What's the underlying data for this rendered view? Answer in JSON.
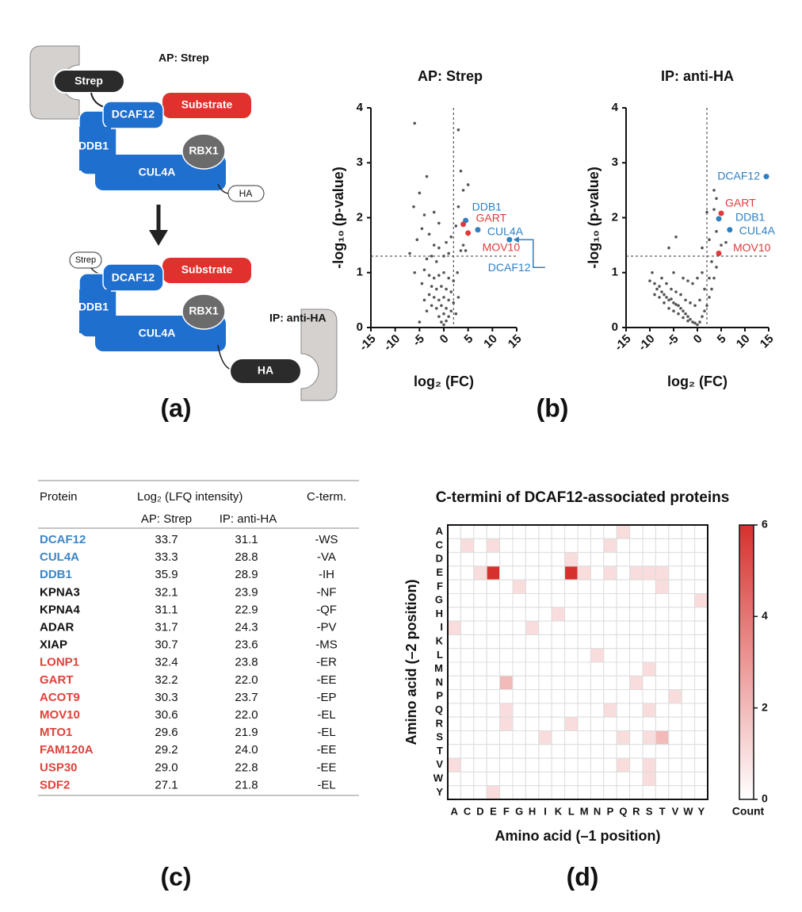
{
  "panel_labels": [
    "(a)",
    "(b)",
    "(c)",
    "(d)"
  ],
  "diagram": {
    "labels": [
      "AP: Strep",
      "Strep",
      "DCAF12",
      "Substrate",
      "DDB1",
      "RBX1",
      "CUL4A",
      "HA",
      "Strep",
      "DCAF12",
      "Substrate",
      "DDB1",
      "RBX1",
      "CUL4A",
      "HA",
      "IP: anti-HA"
    ]
  },
  "table": {
    "headers": [
      "Protein",
      "Log₂ (LFQ intensity)",
      "C-term."
    ],
    "subheaders": [
      "AP: Strep",
      "IP: anti-HA"
    ],
    "rows": [
      [
        "DCAF12",
        "33.7",
        "31.1",
        "-WS"
      ],
      [
        "CUL4A",
        "33.3",
        "28.8",
        "-VA"
      ],
      [
        "DDB1",
        "35.9",
        "28.9",
        "-IH"
      ],
      [
        "KPNA3",
        "32.1",
        "23.9",
        "-NF"
      ],
      [
        "KPNA4",
        "31.1",
        "22.9",
        "-QF"
      ],
      [
        "ADAR",
        "31.7",
        "24.3",
        "-PV"
      ],
      [
        "XIAP",
        "30.7",
        "23.6",
        "-MS"
      ],
      [
        "LONP1",
        "32.4",
        "23.8",
        "-ER"
      ],
      [
        "GART",
        "32.2",
        "22.0",
        "-EE"
      ],
      [
        "ACOT9",
        "30.3",
        "23.7",
        "-EP"
      ],
      [
        "MOV10",
        "30.6",
        "22.0",
        "-EL"
      ],
      [
        "MTO1",
        "29.6",
        "21.9",
        "-EL"
      ],
      [
        "FAM120A",
        "29.2",
        "24.0",
        "-EE"
      ],
      [
        "USP30",
        "29.0",
        "22.8",
        "-EE"
      ],
      [
        "SDF2",
        "27.1",
        "21.8",
        "-EL"
      ]
    ],
    "row_colors": [
      "#3d85c6",
      "#3d85c6",
      "#3d85c6",
      "#111111",
      "#111111",
      "#111111",
      "#111111",
      "#e0413a",
      "#e0413a",
      "#e0413a",
      "#e0413a",
      "#e0413a",
      "#e0413a",
      "#e0413a",
      "#e0413a"
    ]
  },
  "chart_data": [
    {
      "type": "scatter",
      "title": "AP: Strep",
      "xlabel": "log₂ (FC)",
      "ylabel": "-log₁₀ (p-value)",
      "xlim": [
        -15,
        15
      ],
      "ylim": [
        0,
        4
      ],
      "xticks": [
        -15,
        -10,
        -5,
        0,
        5,
        10,
        15
      ],
      "yticks": [
        0,
        1,
        2,
        3,
        4
      ],
      "vlines": [
        2
      ],
      "hlines": [
        1.3
      ],
      "color": "#555555",
      "points": [
        [
          -6,
          3.72
        ],
        [
          3,
          3.6
        ],
        [
          -3.5,
          2.75
        ],
        [
          -5,
          2.45
        ],
        [
          -6.2,
          2.2
        ],
        [
          -4,
          2.05
        ],
        [
          -4.5,
          1.8
        ],
        [
          -7,
          1.35
        ],
        [
          -5.5,
          1.6
        ],
        [
          -3,
          1.7
        ],
        [
          -2,
          1.5
        ],
        [
          -1,
          1.45
        ],
        [
          -2.5,
          1.3
        ],
        [
          -3.5,
          1.25
        ],
        [
          -1.5,
          1.2
        ],
        [
          0,
          1.3
        ],
        [
          1,
          1.35
        ],
        [
          3.5,
          2.85
        ],
        [
          4,
          2.5
        ],
        [
          3,
          2.2
        ],
        [
          2.5,
          1.85
        ],
        [
          5,
          2.6
        ],
        [
          3.5,
          1.4
        ],
        [
          -4,
          1.05
        ],
        [
          -3,
          0.95
        ],
        [
          -2,
          0.9
        ],
        [
          -1,
          0.95
        ],
        [
          0,
          1.0
        ],
        [
          1,
          0.9
        ],
        [
          2,
          0.85
        ],
        [
          -2.5,
          0.75
        ],
        [
          -1.5,
          0.7
        ],
        [
          -0.5,
          0.75
        ],
        [
          0.5,
          0.7
        ],
        [
          1.5,
          0.65
        ],
        [
          -3,
          0.6
        ],
        [
          -2,
          0.55
        ],
        [
          -1,
          0.5
        ],
        [
          0,
          0.55
        ],
        [
          1,
          0.5
        ],
        [
          2,
          0.45
        ],
        [
          -2.5,
          0.4
        ],
        [
          -1.5,
          0.35
        ],
        [
          -0.5,
          0.4
        ],
        [
          0.5,
          0.35
        ],
        [
          1.5,
          0.3
        ],
        [
          -1,
          0.2
        ],
        [
          0,
          0.25
        ],
        [
          1,
          0.2
        ],
        [
          -0.5,
          0.1
        ],
        [
          0.5,
          0.12
        ],
        [
          0,
          0.05
        ],
        [
          -3.5,
          0.3
        ],
        [
          2.5,
          0.25
        ],
        [
          -4,
          0.5
        ],
        [
          3,
          0.55
        ],
        [
          -4.5,
          0.8
        ],
        [
          2.8,
          1.0
        ],
        [
          -5,
          0.1
        ],
        [
          4,
          1.5
        ],
        [
          -1,
          1.9
        ],
        [
          1.5,
          1.65
        ],
        [
          -2,
          2.1
        ],
        [
          0.5,
          1.55
        ],
        [
          4.5,
          1.4
        ],
        [
          -6,
          1.0
        ]
      ],
      "highlights": [
        {
          "name": "DDB1",
          "x": 4.5,
          "y": 1.95,
          "color": "#2f7fc1"
        },
        {
          "name": "GART",
          "x": 4,
          "y": 1.88,
          "color": "#e03a3a"
        },
        {
          "name": "CUL4A",
          "x": 7,
          "y": 1.78,
          "color": "#2f7fc1"
        },
        {
          "name": "MOV10",
          "x": 5,
          "y": 1.72,
          "color": "#e03a3a"
        },
        {
          "name": "DCAF12",
          "x": 13.5,
          "y": 1.6,
          "color": "#2f7fc1"
        }
      ]
    },
    {
      "type": "scatter",
      "title": "IP: anti-HA",
      "xlabel": "log₂ (FC)",
      "ylabel": "-log₁₀ (p-value)",
      "xlim": [
        -15,
        15
      ],
      "ylim": [
        0,
        4
      ],
      "xticks": [
        -15,
        -10,
        -5,
        0,
        5,
        10,
        15
      ],
      "yticks": [
        0,
        1,
        2,
        3,
        4
      ],
      "vlines": [
        2
      ],
      "hlines": [
        1.3
      ],
      "color": "#555555",
      "points": [
        [
          3.5,
          2.5
        ],
        [
          4,
          2.35
        ],
        [
          3.5,
          2.15
        ],
        [
          2,
          2.1
        ],
        [
          4,
          1.75
        ],
        [
          -4.5,
          1.65
        ],
        [
          -6,
          1.45
        ],
        [
          1,
          1.45
        ],
        [
          -9.5,
          1.0
        ],
        [
          -10,
          0.85
        ],
        [
          -9,
          0.8
        ],
        [
          -8.5,
          0.7
        ],
        [
          -8,
          0.75
        ],
        [
          -7.5,
          0.65
        ],
        [
          -7,
          0.6
        ],
        [
          -6.5,
          0.55
        ],
        [
          -6,
          0.5
        ],
        [
          -5.5,
          0.52
        ],
        [
          -5,
          0.45
        ],
        [
          -4.5,
          0.42
        ],
        [
          -4,
          0.4
        ],
        [
          -3.5,
          0.35
        ],
        [
          -3,
          0.3
        ],
        [
          -2.5,
          0.25
        ],
        [
          -2,
          0.2
        ],
        [
          -1.5,
          0.15
        ],
        [
          -1,
          0.1
        ],
        [
          -0.5,
          0.08
        ],
        [
          0,
          0.05
        ],
        [
          0.5,
          0.1
        ],
        [
          1,
          0.2
        ],
        [
          1.5,
          0.3
        ],
        [
          2,
          0.4
        ],
        [
          2.5,
          0.55
        ],
        [
          3,
          0.7
        ],
        [
          3.5,
          0.9
        ],
        [
          4,
          1.1
        ],
        [
          -8,
          0.55
        ],
        [
          -7,
          0.45
        ],
        [
          -6,
          0.35
        ],
        [
          -5,
          0.3
        ],
        [
          -4,
          0.25
        ],
        [
          -3,
          0.18
        ],
        [
          -2,
          0.12
        ],
        [
          -9,
          0.6
        ],
        [
          -7.5,
          0.9
        ],
        [
          -6.5,
          0.8
        ],
        [
          -5.5,
          0.7
        ],
        [
          -4.5,
          0.65
        ],
        [
          -3.5,
          0.6
        ],
        [
          -2.5,
          0.5
        ],
        [
          -1.5,
          0.45
        ],
        [
          -0.5,
          0.4
        ],
        [
          0.5,
          0.5
        ],
        [
          1.5,
          0.7
        ],
        [
          2.5,
          0.9
        ],
        [
          3,
          1.2
        ],
        [
          -3,
          0.9
        ],
        [
          -2,
          0.85
        ],
        [
          -1,
          0.8
        ],
        [
          0,
          0.9
        ],
        [
          1,
          1.0
        ],
        [
          -5,
          1.0
        ],
        [
          2.5,
          1.6
        ],
        [
          5,
          1.5
        ],
        [
          6,
          1.55
        ]
      ],
      "highlights": [
        {
          "name": "DCAF12",
          "x": 14.5,
          "y": 2.75,
          "color": "#2f7fc1"
        },
        {
          "name": "GART",
          "x": 5,
          "y": 2.08,
          "color": "#e03a3a"
        },
        {
          "name": "DDB1",
          "x": 4.5,
          "y": 1.98,
          "color": "#2f7fc1"
        },
        {
          "name": "CUL4A",
          "x": 6.8,
          "y": 1.78,
          "color": "#2f7fc1"
        },
        {
          "name": "MOV10",
          "x": 4.5,
          "y": 1.35,
          "color": "#e03a3a"
        }
      ]
    },
    {
      "type": "heatmap",
      "title": "C-termini of DCAF12-associated proteins",
      "xlabel": "Amino acid (–1 position)",
      "ylabel": "Amino acid (–2 position)",
      "x": [
        "A",
        "C",
        "D",
        "E",
        "F",
        "G",
        "H",
        "I",
        "K",
        "L",
        "M",
        "N",
        "P",
        "Q",
        "R",
        "S",
        "T",
        "V",
        "W",
        "Y"
      ],
      "y": [
        "A",
        "C",
        "D",
        "E",
        "F",
        "G",
        "H",
        "I",
        "K",
        "L",
        "M",
        "N",
        "P",
        "Q",
        "R",
        "S",
        "T",
        "V",
        "W",
        "Y"
      ],
      "values": [
        [
          0,
          0,
          0,
          0,
          0,
          0,
          0,
          0,
          0,
          0,
          0,
          0,
          0,
          1,
          0,
          0,
          0,
          0,
          0,
          0
        ],
        [
          0,
          1,
          0,
          1,
          0,
          0,
          0,
          0,
          0,
          0,
          0,
          0,
          1,
          0,
          0,
          0,
          0,
          0,
          0,
          0
        ],
        [
          0,
          0,
          0,
          0,
          0,
          0,
          0,
          0,
          0,
          1,
          0,
          0,
          0,
          0,
          0,
          0,
          0,
          0,
          0,
          0
        ],
        [
          0,
          0,
          1,
          6,
          0,
          0,
          0,
          0,
          0,
          6,
          1,
          0,
          1,
          0,
          1,
          1,
          1,
          0,
          0,
          0
        ],
        [
          0,
          0,
          0,
          0,
          0,
          1,
          0,
          0,
          0,
          0,
          0,
          0,
          0,
          0,
          0,
          0,
          1,
          0,
          0,
          0
        ],
        [
          0,
          0,
          0,
          0,
          0,
          0,
          0,
          0,
          0,
          0,
          0,
          0,
          0,
          0,
          0,
          0,
          0,
          0,
          0,
          1
        ],
        [
          0,
          0,
          0,
          0,
          0,
          0,
          0,
          0,
          1,
          0,
          0,
          0,
          0,
          0,
          0,
          0,
          0,
          0,
          0,
          0
        ],
        [
          1,
          0,
          0,
          0,
          0,
          0,
          1,
          0,
          0,
          0,
          0,
          0,
          0,
          0,
          0,
          0,
          0,
          0,
          0,
          0
        ],
        [
          0,
          0,
          0,
          0,
          0,
          0,
          0,
          0,
          0,
          0,
          0,
          0,
          0,
          0,
          0,
          0,
          0,
          0,
          0,
          0
        ],
        [
          0,
          0,
          0,
          0,
          0,
          0,
          0,
          0,
          0,
          0,
          0,
          1,
          0,
          0,
          0,
          0,
          0,
          0,
          0,
          0
        ],
        [
          0,
          0,
          0,
          0,
          0,
          0,
          0,
          0,
          0,
          0,
          0,
          0,
          0,
          0,
          0,
          1,
          0,
          0,
          0,
          0
        ],
        [
          0,
          0,
          0,
          0,
          2,
          0,
          0,
          0,
          0,
          0,
          0,
          0,
          0,
          0,
          1,
          0,
          0,
          0,
          0,
          0
        ],
        [
          0,
          0,
          0,
          0,
          0,
          0,
          0,
          0,
          0,
          0,
          0,
          0,
          0,
          0,
          0,
          0,
          0,
          1,
          0,
          0
        ],
        [
          0,
          0,
          0,
          0,
          1,
          0,
          0,
          0,
          0,
          0,
          0,
          0,
          1,
          0,
          0,
          1,
          0,
          0,
          0,
          0
        ],
        [
          0,
          0,
          0,
          0,
          1,
          0,
          0,
          0,
          0,
          1,
          0,
          0,
          0,
          0,
          0,
          0,
          0,
          0,
          0,
          0
        ],
        [
          0,
          0,
          0,
          0,
          0,
          0,
          0,
          1,
          0,
          0,
          0,
          0,
          0,
          1,
          0,
          1,
          2,
          0,
          0,
          0
        ],
        [
          0,
          0,
          0,
          0,
          0,
          0,
          0,
          0,
          0,
          0,
          0,
          0,
          0,
          0,
          0,
          0,
          0,
          0,
          0,
          0
        ],
        [
          1,
          0,
          0,
          0,
          0,
          0,
          0,
          0,
          0,
          0,
          0,
          0,
          0,
          1,
          0,
          1,
          0,
          0,
          0,
          0
        ],
        [
          0,
          0,
          0,
          0,
          0,
          0,
          0,
          0,
          0,
          0,
          0,
          0,
          0,
          0,
          0,
          1,
          0,
          0,
          0,
          0
        ],
        [
          0,
          0,
          0,
          1,
          0,
          0,
          0,
          0,
          0,
          0,
          0,
          0,
          0,
          0,
          0,
          0,
          0,
          0,
          0,
          0
        ]
      ],
      "colorbar": {
        "label": "Count",
        "lim": [
          0,
          6
        ],
        "ticks": [
          0,
          2,
          4,
          6
        ],
        "colors": [
          "#ffffff",
          "#d7312e"
        ]
      }
    }
  ]
}
